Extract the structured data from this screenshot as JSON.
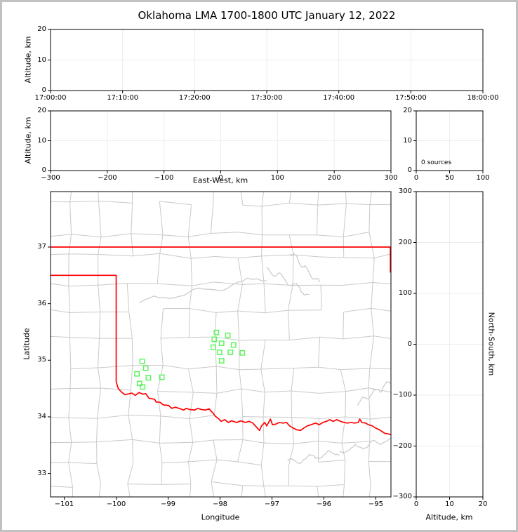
{
  "page": {
    "title": "Oklahoma LMA 1700-1800 UTC January 12, 2022"
  },
  "colors": {
    "background": "#ffffff",
    "page_border": "#c1c1c1",
    "frame": "#000000",
    "grid": "#ececec",
    "county": "#c9c9c9",
    "state_border": "#ff0000",
    "station": "#55f555"
  },
  "chart_data": [
    {
      "id": "time_height",
      "type": "scatter",
      "ylabel": "Altitude, km",
      "x_ticks": [
        "17:00:00",
        "17:10:00",
        "17:20:00",
        "17:30:00",
        "17:40:00",
        "17:50:00",
        "18:00:00"
      ],
      "y_ticks": [
        0,
        10,
        20
      ],
      "ylim": [
        0,
        20
      ],
      "points": []
    },
    {
      "id": "eastwest_height",
      "type": "scatter",
      "xlabel": "East-West, km",
      "ylabel": "Altitude, km",
      "x_ticks": [
        -300,
        -200,
        -100,
        0,
        100,
        200,
        300
      ],
      "xlim": [
        -300,
        300
      ],
      "y_ticks": [
        0,
        10,
        20
      ],
      "ylim": [
        0,
        20
      ],
      "points": []
    },
    {
      "id": "histogram",
      "type": "line",
      "annotation": "0 sources",
      "x_ticks": [
        0,
        50,
        100
      ],
      "xlim": [
        0,
        100
      ],
      "y_ticks": [
        0,
        10,
        20
      ],
      "ylim": [
        0,
        20
      ],
      "points": []
    },
    {
      "id": "plan_view_map",
      "type": "scatter",
      "xlabel": "Longitude",
      "ylabel": "Latitude",
      "x_ticks": [
        -101,
        -100,
        -99,
        -98,
        -97,
        -96,
        -95
      ],
      "xlim": [
        -101.264,
        -94.709
      ],
      "y_ticks": [
        33,
        34,
        35,
        36,
        37
      ],
      "ylim": [
        32.585,
        37.98
      ],
      "grid": false,
      "stations": {
        "marker": "open-square",
        "lonlat": [
          [
            -98.07,
            35.49
          ],
          [
            -97.85,
            35.44
          ],
          [
            -98.11,
            35.37
          ],
          [
            -97.97,
            35.3
          ],
          [
            -98.13,
            35.23
          ],
          [
            -97.74,
            35.27
          ],
          [
            -98.01,
            35.14
          ],
          [
            -97.8,
            35.14
          ],
          [
            -97.57,
            35.13
          ],
          [
            -97.97,
            34.99
          ],
          [
            -99.5,
            34.98
          ],
          [
            -99.43,
            34.86
          ],
          [
            -99.6,
            34.76
          ],
          [
            -99.38,
            34.69
          ],
          [
            -99.12,
            34.7
          ],
          [
            -99.55,
            34.59
          ],
          [
            -99.49,
            34.53
          ]
        ]
      },
      "state_border": {
        "polylines": [
          [
            [
              -101.264,
              37.0
            ],
            [
              -94.709,
              37.0
            ]
          ],
          [
            [
              -94.72,
              37.0
            ],
            [
              -94.72,
              36.55
            ]
          ],
          [
            [
              -101.264,
              36.5
            ],
            [
              -100.0,
              36.5
            ],
            [
              -100.0,
              34.62
            ],
            [
              -99.96,
              34.5
            ],
            [
              -99.9,
              34.44
            ],
            [
              -99.83,
              34.39
            ],
            [
              -99.7,
              34.42
            ],
            [
              -99.63,
              34.38
            ],
            [
              -99.56,
              34.43
            ],
            [
              -99.48,
              34.4
            ],
            [
              -99.43,
              34.41
            ],
            [
              -99.37,
              34.33
            ],
            [
              -99.26,
              34.31
            ],
            [
              -99.23,
              34.26
            ],
            [
              -99.16,
              34.26
            ],
            [
              -99.09,
              34.21
            ],
            [
              -98.99,
              34.2
            ],
            [
              -98.93,
              34.15
            ],
            [
              -98.86,
              34.17
            ],
            [
              -98.76,
              34.14
            ],
            [
              -98.7,
              34.12
            ],
            [
              -98.65,
              34.15
            ],
            [
              -98.59,
              34.13
            ],
            [
              -98.49,
              34.12
            ],
            [
              -98.43,
              34.15
            ],
            [
              -98.36,
              34.13
            ],
            [
              -98.28,
              34.12
            ],
            [
              -98.21,
              34.14
            ],
            [
              -98.14,
              34.07
            ],
            [
              -98.09,
              34.01
            ],
            [
              -98.02,
              33.96
            ],
            [
              -97.98,
              33.92
            ],
            [
              -97.91,
              33.95
            ],
            [
              -97.84,
              33.9
            ],
            [
              -97.78,
              33.93
            ],
            [
              -97.68,
              33.9
            ],
            [
              -97.6,
              33.93
            ],
            [
              -97.51,
              33.9
            ],
            [
              -97.44,
              33.92
            ],
            [
              -97.37,
              33.89
            ],
            [
              -97.3,
              33.82
            ],
            [
              -97.24,
              33.76
            ],
            [
              -97.2,
              33.84
            ],
            [
              -97.14,
              33.9
            ],
            [
              -97.1,
              33.84
            ],
            [
              -97.03,
              33.96
            ],
            [
              -96.99,
              33.86
            ],
            [
              -96.93,
              33.87
            ],
            [
              -96.86,
              33.9
            ],
            [
              -96.79,
              33.89
            ],
            [
              -96.72,
              33.9
            ],
            [
              -96.66,
              33.84
            ],
            [
              -96.59,
              33.8
            ],
            [
              -96.52,
              33.77
            ],
            [
              -96.45,
              33.76
            ],
            [
              -96.39,
              33.8
            ],
            [
              -96.32,
              33.84
            ],
            [
              -96.25,
              33.86
            ],
            [
              -96.16,
              33.89
            ],
            [
              -96.09,
              33.86
            ],
            [
              -96.02,
              33.9
            ],
            [
              -95.95,
              33.92
            ],
            [
              -95.89,
              33.95
            ],
            [
              -95.82,
              33.92
            ],
            [
              -95.75,
              33.95
            ],
            [
              -95.68,
              33.92
            ],
            [
              -95.61,
              33.9
            ],
            [
              -95.55,
              33.89
            ],
            [
              -95.48,
              33.9
            ],
            [
              -95.41,
              33.89
            ],
            [
              -95.34,
              33.9
            ],
            [
              -95.31,
              33.96
            ],
            [
              -95.27,
              33.9
            ],
            [
              -95.2,
              33.89
            ],
            [
              -95.14,
              33.86
            ],
            [
              -95.07,
              33.84
            ],
            [
              -95.0,
              33.8
            ],
            [
              -94.93,
              33.77
            ],
            [
              -94.88,
              33.74
            ],
            [
              -94.83,
              33.71
            ],
            [
              -94.77,
              33.7
            ],
            [
              -94.7,
              33.68
            ]
          ]
        ]
      },
      "points": []
    },
    {
      "id": "northsouth_height",
      "type": "scatter",
      "xlabel": "Altitude, km",
      "ylabel_right": "North-South, km",
      "x_ticks": [
        0,
        10,
        20
      ],
      "xlim": [
        0,
        20
      ],
      "y_ticks": [
        300,
        200,
        100,
        0,
        -100,
        -200,
        -300
      ],
      "ylim": [
        -300,
        300
      ],
      "points": []
    }
  ]
}
